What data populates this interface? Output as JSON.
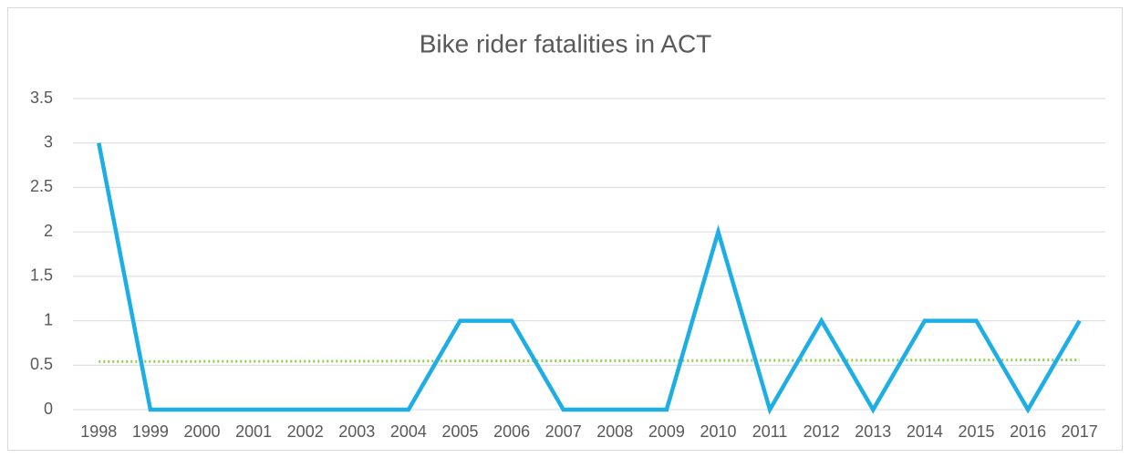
{
  "chart_data": {
    "type": "line",
    "title": "Bike rider fatalities in ACT",
    "categories": [
      "1998",
      "1999",
      "2000",
      "2001",
      "2002",
      "2003",
      "2004",
      "2005",
      "2006",
      "2007",
      "2008",
      "2009",
      "2010",
      "2011",
      "2012",
      "2013",
      "2014",
      "2015",
      "2016",
      "2017"
    ],
    "series": [
      {
        "name": "Bike rider fatalities",
        "color": "#1eaee6",
        "values": [
          3,
          0,
          0,
          0,
          0,
          0,
          0,
          1,
          1,
          0,
          0,
          0,
          2,
          0,
          1,
          0,
          1,
          1,
          0,
          1
        ]
      }
    ],
    "trendline": {
      "color": "#92d050",
      "values": [
        0.54,
        0.56
      ]
    },
    "ylim": [
      0,
      3.5
    ],
    "yticks": [
      0,
      0.5,
      1,
      1.5,
      2,
      2.5,
      3,
      3.5
    ],
    "grid": true
  }
}
